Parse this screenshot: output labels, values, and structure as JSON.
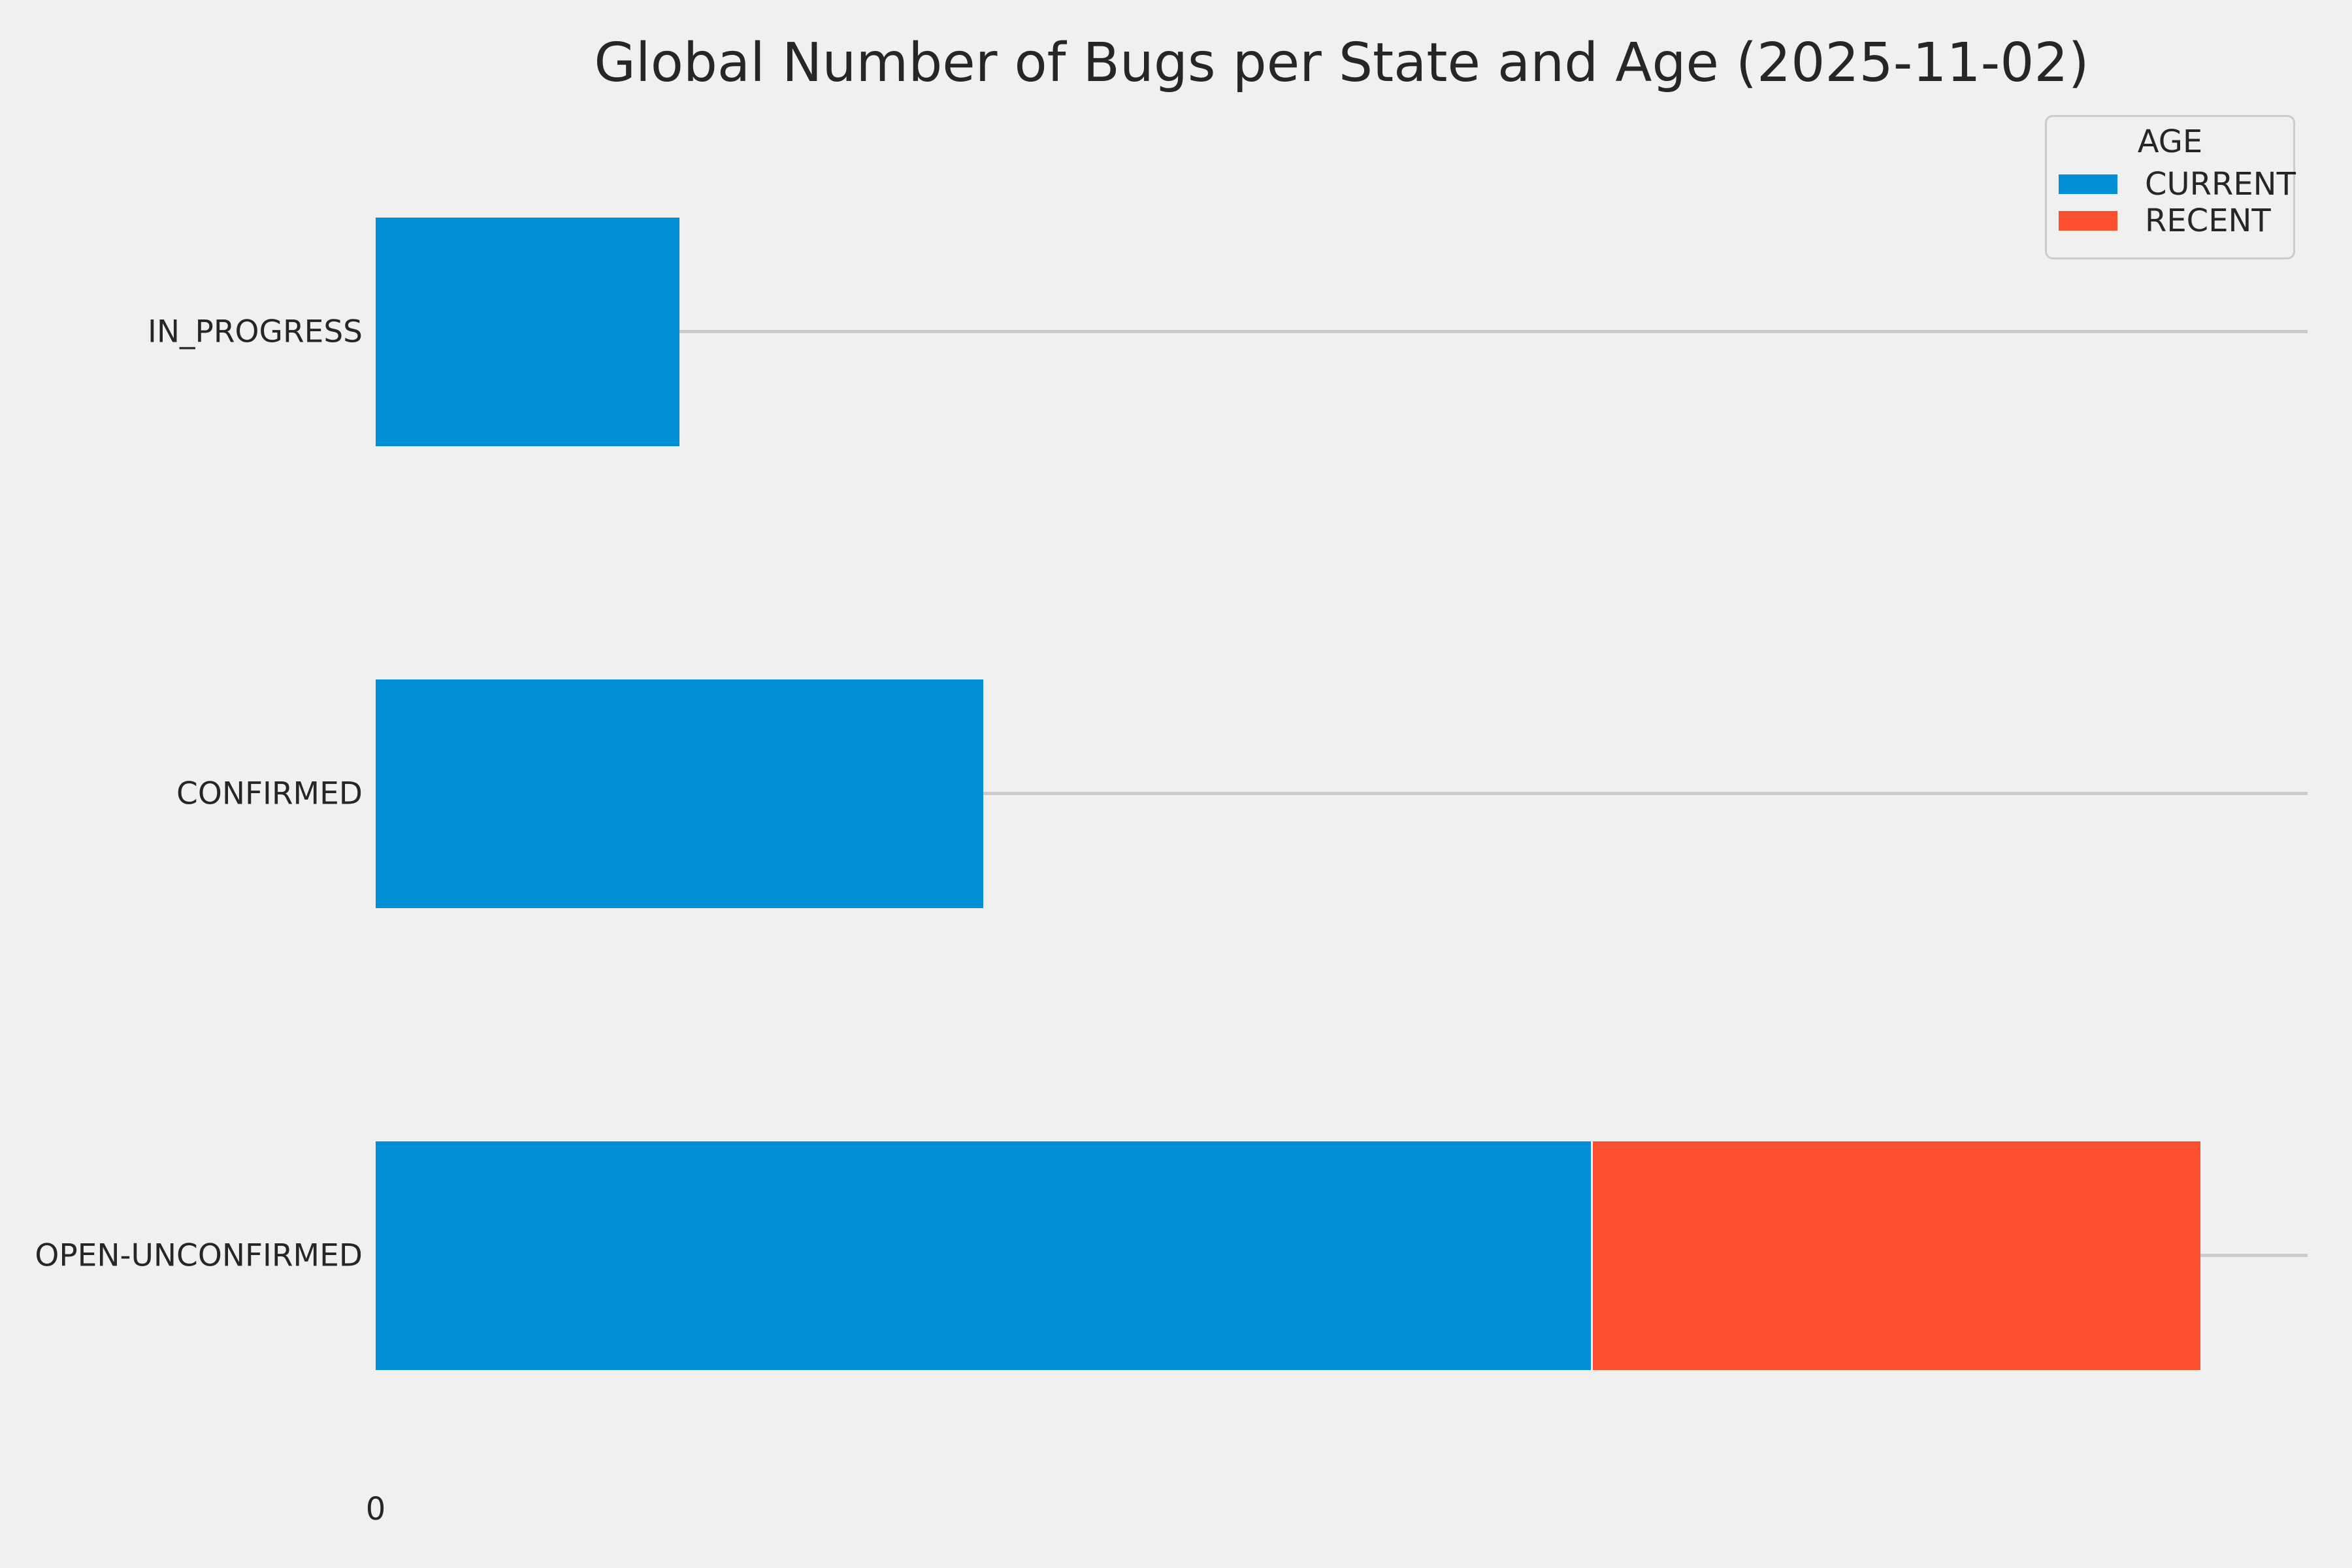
{
  "page": {
    "background_color": "#f0f0f0",
    "text_color": "#262626",
    "gridline_color": "#cbcbcb"
  },
  "chart_data": {
    "type": "bar",
    "orientation": "horizontal",
    "stacked": true,
    "title": "Global Number of Bugs per State and Age (2025-11-02)",
    "categories": [
      "IN_PROGRESS",
      "CONFIRMED",
      "OPEN-UNCONFIRMED"
    ],
    "series": [
      {
        "name": "CURRENT",
        "color": "#008fd5",
        "values": [
          1,
          2,
          4
        ]
      },
      {
        "name": "RECENT",
        "color": "#fc4f30",
        "values": [
          0,
          0,
          2
        ]
      }
    ],
    "xlabel": "",
    "ylabel": "",
    "xlim": [
      0,
      6.36
    ],
    "x_tick_values": [
      0
    ],
    "x_tick_labels": [
      "0"
    ],
    "grid": {
      "horizontal_category_lines": true,
      "vertical_lines": false
    },
    "legend": {
      "title": "AGE",
      "position": "upper-right"
    }
  }
}
